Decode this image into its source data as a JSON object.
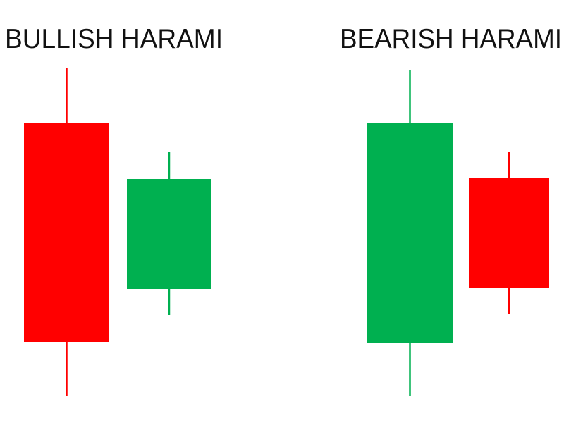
{
  "colors": {
    "bearish": "#FF0000",
    "bullish": "#00B050",
    "text": "#111111",
    "background": "#FFFFFF"
  },
  "patterns": [
    {
      "title": "BULLISH HARAMI",
      "candles": [
        {
          "type": "bearish"
        },
        {
          "type": "bullish"
        }
      ]
    },
    {
      "title": "BEARISH HARAMI",
      "candles": [
        {
          "type": "bullish"
        },
        {
          "type": "bearish"
        }
      ]
    }
  ]
}
